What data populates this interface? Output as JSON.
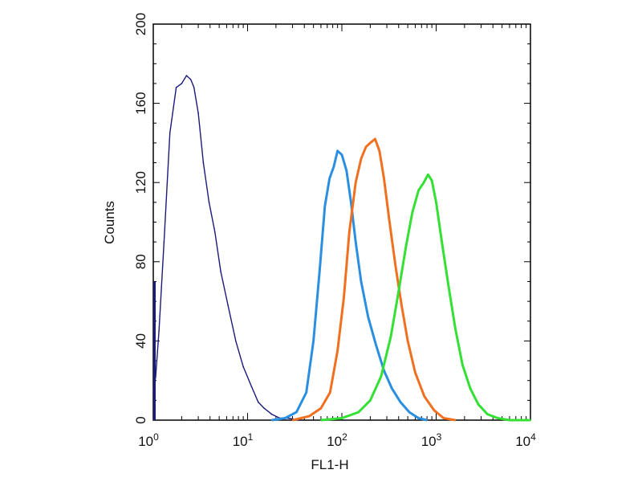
{
  "chart_data": {
    "type": "line",
    "title": "",
    "xlabel": "FL1-H",
    "ylabel": "Counts",
    "x_scale": "log",
    "xlim": [
      1,
      10000
    ],
    "ylim": [
      0,
      200
    ],
    "x_ticks": [
      {
        "value": 1,
        "base": "10",
        "exp": "0"
      },
      {
        "value": 10,
        "base": "10",
        "exp": "1"
      },
      {
        "value": 100,
        "base": "10",
        "exp": "2"
      },
      {
        "value": 1000,
        "base": "10",
        "exp": "3"
      },
      {
        "value": 10000,
        "base": "10",
        "exp": "4"
      }
    ],
    "y_ticks": [
      "0",
      "40",
      "80",
      "120",
      "160",
      "200"
    ],
    "grid": false,
    "legend": "none",
    "series": [
      {
        "color": "#1a1a7a",
        "x": [
          1,
          1.06,
          1.15,
          1.3,
          1.5,
          1.75,
          2.0,
          2.25,
          2.5,
          2.7,
          3.0,
          3.4,
          3.9,
          4.5,
          5.2,
          6.2,
          7.5,
          9.0,
          11,
          13,
          15,
          18,
          22,
          27,
          35
        ],
        "y": [
          14,
          22,
          45,
          90,
          145,
          168,
          170,
          174,
          172,
          168,
          155,
          130,
          110,
          95,
          75,
          58,
          40,
          27,
          17,
          9,
          6,
          3,
          1,
          1,
          0
        ]
      },
      {
        "color": "#2a8fe0",
        "x": [
          18,
          25,
          33,
          42,
          50,
          58,
          66,
          74,
          82,
          90,
          100,
          112,
          125,
          140,
          160,
          190,
          230,
          280,
          340,
          420,
          520,
          650,
          800
        ],
        "y": [
          0,
          1,
          4,
          14,
          40,
          75,
          108,
          122,
          128,
          136,
          134,
          126,
          110,
          90,
          70,
          52,
          38,
          25,
          16,
          9,
          4,
          1,
          0
        ]
      },
      {
        "color": "#f07020",
        "x": [
          30,
          45,
          60,
          75,
          90,
          105,
          120,
          140,
          160,
          180,
          200,
          225,
          250,
          280,
          320,
          370,
          430,
          500,
          600,
          750,
          950,
          1200,
          1600
        ],
        "y": [
          0,
          2,
          6,
          14,
          35,
          62,
          95,
          120,
          132,
          138,
          140,
          142,
          136,
          122,
          100,
          78,
          58,
          40,
          24,
          12,
          5,
          1,
          0
        ]
      },
      {
        "color": "#33e033",
        "x": [
          60,
          100,
          150,
          200,
          260,
          330,
          400,
          480,
          560,
          650,
          740,
          820,
          900,
          1000,
          1150,
          1350,
          1600,
          1900,
          2300,
          2800,
          3500,
          4500,
          6000,
          10000
        ],
        "y": [
          0,
          1,
          4,
          10,
          22,
          42,
          65,
          88,
          105,
          116,
          120,
          124,
          121,
          110,
          90,
          68,
          46,
          28,
          16,
          8,
          3,
          1,
          0,
          0
        ]
      }
    ]
  }
}
